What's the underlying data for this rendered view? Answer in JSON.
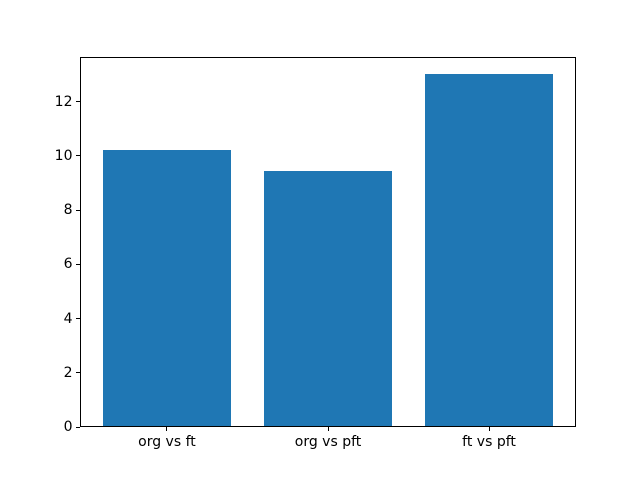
{
  "chart_data": {
    "type": "bar",
    "title": "",
    "xlabel": "",
    "ylabel": "",
    "categories": [
      "org vs ft",
      "org vs pft",
      "ft vs pft"
    ],
    "values": [
      10.2,
      9.4,
      13.0
    ],
    "yticks": [
      0,
      2,
      4,
      6,
      8,
      10,
      12
    ],
    "ylim": [
      0,
      13.65
    ],
    "xlim": [
      -0.54,
      2.54
    ],
    "bar_width_units": 0.8,
    "bar_color": "#1f77b4",
    "spine_color": "#000000",
    "background_color": "#ffffff",
    "grid": false,
    "legend": null
  }
}
